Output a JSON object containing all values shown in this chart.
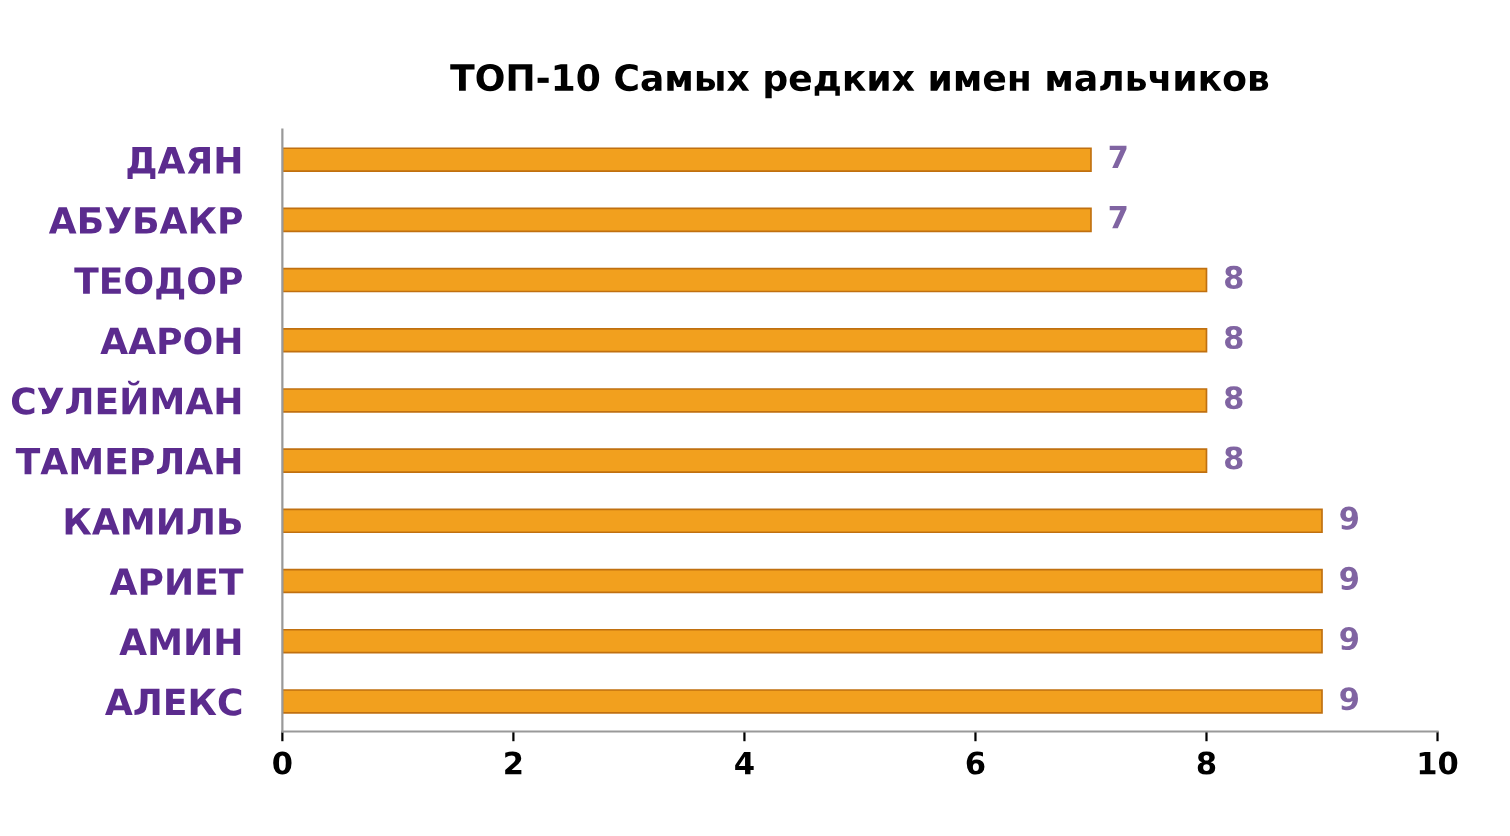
{
  "chart_data": {
    "type": "bar",
    "orientation": "horizontal",
    "title": "ТОП-10 Самых редких имен мальчиков",
    "categories": [
      "ДАЯН",
      "АБУБАКР",
      "ТЕОДОР",
      "ААРОН",
      "СУЛЕЙМАН",
      "ТАМЕРЛАН",
      "КАМИЛЬ",
      "АРИЕТ",
      "АМИН",
      "АЛЕКС"
    ],
    "values": [
      7,
      7,
      8,
      8,
      8,
      8,
      9,
      9,
      9,
      9
    ],
    "color": "#f2a01e",
    "xlim": [
      0,
      10
    ],
    "xticks": [
      0,
      2,
      4,
      6,
      8,
      10
    ],
    "data_labels": true,
    "grid": false,
    "legend": false
  }
}
